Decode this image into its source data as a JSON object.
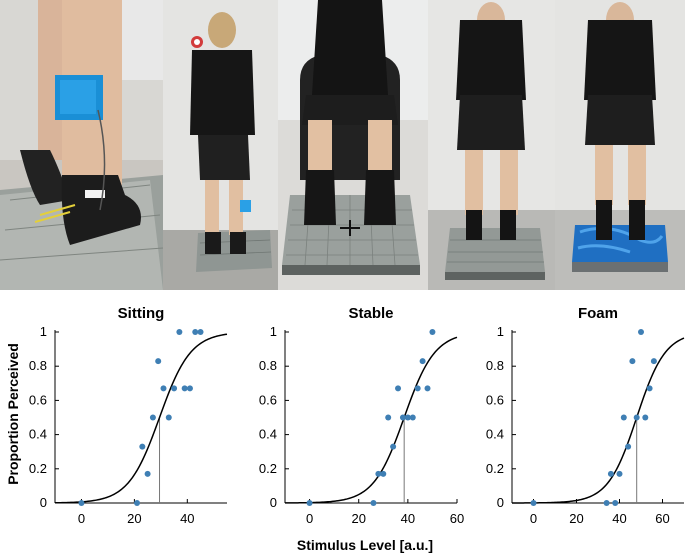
{
  "figure": {
    "ylabel": "Proportion Perceived",
    "xlabel": "Stimulus Level [a.u.]"
  },
  "photos": [
    {
      "name": "photo-ankle-electrode"
    },
    {
      "name": "photo-standing-back-view"
    },
    {
      "name": "photo-sitting-condition"
    },
    {
      "name": "photo-stable-condition"
    },
    {
      "name": "photo-foam-condition"
    }
  ],
  "colors": {
    "points": "#3f7fb4",
    "curve": "#000000",
    "threshold_line": "#777777"
  },
  "chart_data": [
    {
      "type": "scatter",
      "title": "Sitting",
      "xlim": [
        -10,
        55
      ],
      "ylim": [
        0,
        1
      ],
      "xticks": [
        0,
        20,
        40
      ],
      "yticks": [
        0,
        0.2,
        0.4,
        0.6,
        0.8,
        1
      ],
      "points": {
        "x": [
          0,
          21,
          23,
          25,
          27,
          29,
          31,
          33,
          35,
          37,
          39,
          41,
          43,
          45
        ],
        "y": [
          0,
          0,
          0.33,
          0.17,
          0.5,
          0.83,
          0.67,
          0.5,
          0.67,
          1,
          0.67,
          0.67,
          1,
          1
        ]
      },
      "fit": {
        "model": "logistic",
        "threshold": 29.5,
        "slope": 0.17
      },
      "threshold_line": 29.5
    },
    {
      "type": "scatter",
      "title": "Stable",
      "xlim": [
        -10,
        60
      ],
      "ylim": [
        0,
        1
      ],
      "xticks": [
        0,
        20,
        40,
        60
      ],
      "yticks": [
        0,
        0.2,
        0.4,
        0.6,
        0.8,
        1
      ],
      "points": {
        "x": [
          0,
          26,
          28,
          30,
          32,
          34,
          36,
          38,
          40,
          42,
          44,
          46,
          48,
          50
        ],
        "y": [
          0,
          0,
          0.17,
          0.17,
          0.5,
          0.33,
          0.67,
          0.5,
          0.5,
          0.5,
          0.67,
          0.83,
          0.67,
          1
        ]
      },
      "fit": {
        "model": "logistic",
        "threshold": 38.5,
        "slope": 0.16
      },
      "threshold_line": 38.5
    },
    {
      "type": "scatter",
      "title": "Foam",
      "xlim": [
        -10,
        70
      ],
      "ylim": [
        0,
        1
      ],
      "xticks": [
        0,
        20,
        40,
        60
      ],
      "yticks": [
        0,
        0.2,
        0.4,
        0.6,
        0.8,
        1
      ],
      "points": {
        "x": [
          0,
          34,
          36,
          38,
          40,
          42,
          44,
          46,
          48,
          50,
          52,
          54,
          56
        ],
        "y": [
          0,
          0,
          0.17,
          0,
          0.17,
          0.5,
          0.33,
          0.83,
          0.5,
          1,
          0.5,
          0.67,
          0.83
        ]
      },
      "fit": {
        "model": "logistic",
        "threshold": 48,
        "slope": 0.15
      },
      "threshold_line": 48
    }
  ]
}
